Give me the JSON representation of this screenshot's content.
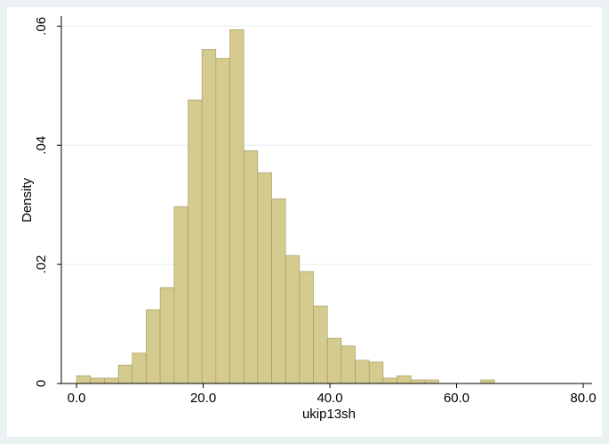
{
  "chart_data": {
    "type": "histogram",
    "x_label": "ukip13sh",
    "y_label": "Density",
    "bins": [
      0,
      2.2,
      4.4,
      6.6,
      8.8,
      11,
      13.2,
      15.4,
      17.6,
      19.8,
      22,
      24.2,
      26.4,
      28.6,
      30.8,
      33,
      35.2,
      37.4,
      39.6,
      41.8,
      44,
      46.2,
      48.4,
      50.6,
      52.8,
      55,
      57.2,
      59.4,
      61.6,
      63.8,
      66
    ],
    "values": [
      0.0013,
      0.0009,
      0.0009,
      0.0031,
      0.0051,
      0.0124,
      0.0161,
      0.0297,
      0.0476,
      0.0561,
      0.0546,
      0.0594,
      0.0391,
      0.0354,
      0.031,
      0.0215,
      0.0188,
      0.013,
      0.0076,
      0.0063,
      0.0039,
      0.0036,
      0.0009,
      0.0013,
      0.0006,
      0.0006,
      0,
      0,
      0,
      0.0006
    ],
    "color": "#d5cb8e",
    "edge_color": "#9e9760",
    "xlim": [
      -2.4,
      81.4
    ],
    "ylim": [
      0,
      0.0617
    ],
    "xticks": [
      {
        "value": 0,
        "label": "0.0"
      },
      {
        "value": 20,
        "label": "20.0"
      },
      {
        "value": 40,
        "label": "40.0"
      },
      {
        "value": 60,
        "label": "60.0"
      },
      {
        "value": 80,
        "label": "80.0"
      }
    ],
    "yticks": [
      0,
      {
        "value": 0.02,
        "label": ".02"
      },
      {
        "value": 0.04,
        "label": ".04"
      },
      {
        "value": 0.06,
        "label": ".06"
      }
    ],
    "grid": true
  }
}
